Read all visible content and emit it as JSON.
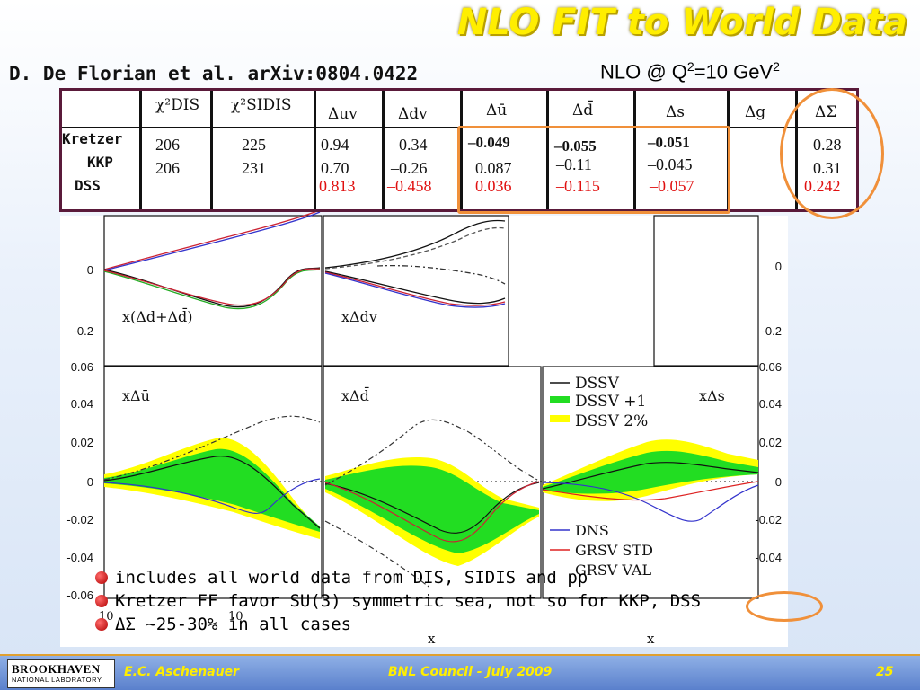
{
  "slide": {
    "title": "NLO FIT to World Data",
    "subtitle": "D. De Florian et al. arXiv:0804.0422",
    "scale": {
      "prefix": "NLO @ Q",
      "exp1": "2",
      "mid": "=10 GeV",
      "exp2": "2"
    }
  },
  "table": {
    "headers": [
      "χ²DIS",
      "χ²SIDIS",
      "Δuv",
      "Δdv",
      "Δū",
      "Δd̄",
      "Δs",
      "Δg",
      "ΔΣ"
    ],
    "rows": [
      {
        "label": "Kretzer",
        "values": [
          "206",
          "225",
          "0.94",
          "–0.34",
          "–0.049",
          "–0.055",
          "–0.051",
          "",
          "0.28"
        ]
      },
      {
        "label": "KKP",
        "values": [
          "206",
          "231",
          "0.70",
          "–0.26",
          "0.087",
          "–0.11",
          "–0.045",
          "",
          "0.31"
        ]
      },
      {
        "label": "DSS",
        "values": [
          "",
          "",
          "0.813",
          "–0.458",
          "0.036",
          "–0.115",
          "–0.057",
          "",
          "0.242"
        ]
      }
    ]
  },
  "plots": {
    "panels": {
      "d_plus_dbar": "x(Δd+Δd̄)",
      "dv": "xΔdv",
      "ubar": "xΔū",
      "dbar": "xΔd̄",
      "s": "xΔs"
    },
    "yticks_top": [
      "0",
      "-0.2"
    ],
    "yticks_bottom": [
      "0.06",
      "0.04",
      "0.02",
      "0",
      "-0.02",
      "-0.04",
      "-0.06"
    ],
    "right_ticks_top": [
      "0",
      "-0.2"
    ],
    "right_ticks_bottom": [
      "0.06",
      "0.04",
      "0.02",
      "0",
      "-0.02",
      "-0.04"
    ],
    "xlabel": "x",
    "xtick": "10",
    "legend": [
      "DSSV",
      "DSSV +1",
      "DSSV 2%",
      "DNS",
      "GRSV STD",
      "GRSV VAL"
    ],
    "colors": {
      "band_yellow": "#ffff00",
      "band_green": "#22dd22",
      "dns": "#3333dd",
      "grsv_std": "#dd2222"
    }
  },
  "bullets": [
    "includes all world data from DIS, SIDIS and pp",
    "Kretzer FF favor SU(3) symmetric sea, not so for KKP, DSS",
    "ΔΣ ~25-30% in all cases"
  ],
  "footer": {
    "logo_main": "BROOKHAVEN",
    "logo_sub": "NATIONAL LABORATORY",
    "author": "E.C. Aschenauer",
    "event": "BNL Council - July 2009",
    "page": "25"
  }
}
